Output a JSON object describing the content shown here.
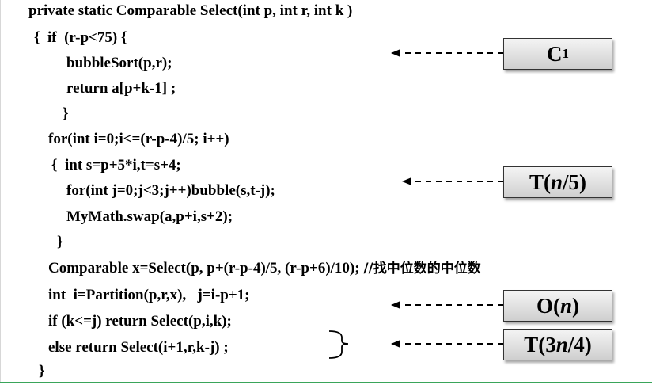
{
  "code_lines": [
    "private static Comparable Select(int p, int r, int k )",
    "{  if  (r-p<75) {",
    "bubbleSort(p,r);",
    "return a[p+k-1] ;",
    "}",
    "for(int i=0;i<=(r-p-4)/5; i++)",
    "{  int s=p+5*i,t=s+4;",
    "for(int j=0;j<3;j++)bubble(s,t-j);",
    "MyMath.swap(a,p+i,s+2);",
    "}",
    "Comparable x=Select(p, p+(r-p-4)/5, (r-p+6)/10); ",
    "int  i=Partition(p,r,x),   j=i-p+1;",
    "if (k<=j) return Select(p,i,k);",
    "else return Select(i+1,r,k-j) ;",
    "}"
  ],
  "comment": "//找中位数的中位数",
  "boxes": {
    "c1": {
      "main": "C",
      "sub": "1"
    },
    "tn5": {
      "pre": "T(",
      "var": "n",
      "post": "/5)"
    },
    "on": {
      "pre": "O(",
      "var": "n",
      "post": ")"
    },
    "t3n4": {
      "pre": "T(3",
      "var": "n",
      "post": "/4)"
    }
  },
  "colors": {
    "accent_line": "#3aa55a",
    "box_border": "#333333"
  }
}
